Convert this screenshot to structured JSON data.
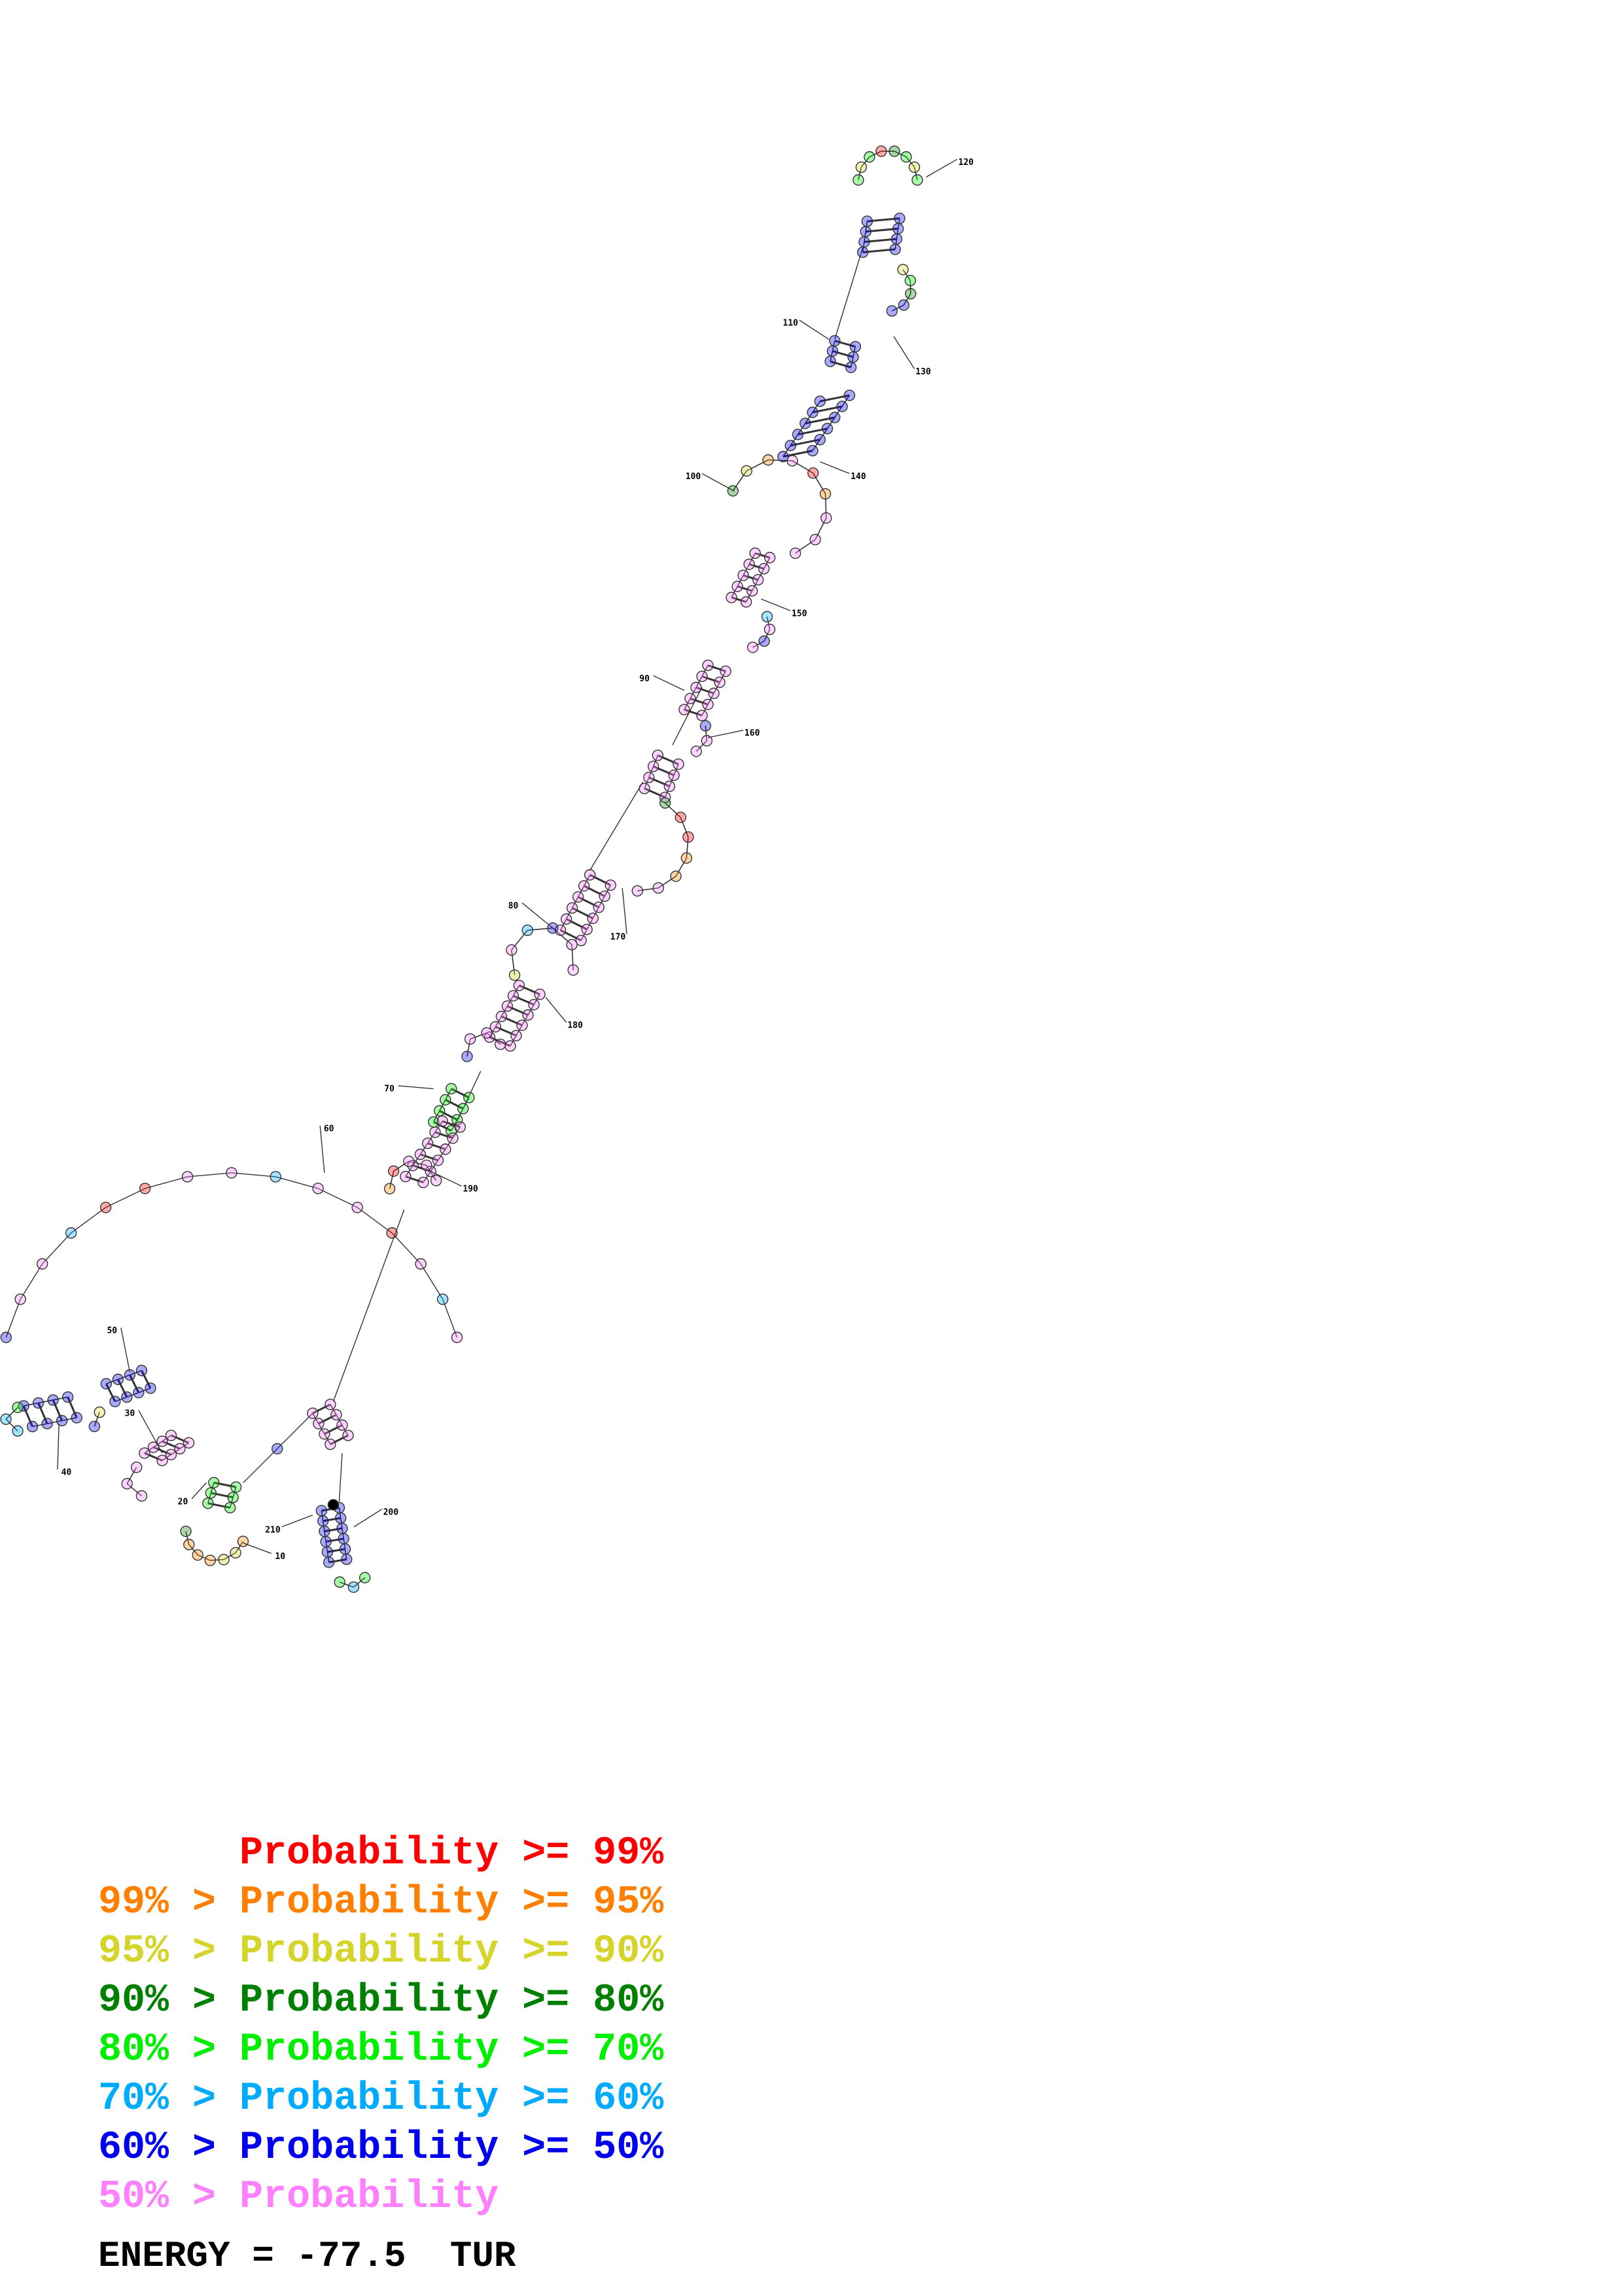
{
  "legend": [
    {
      "prefix": "",
      "label": "Probability >= 99%",
      "color": "#ff0000"
    },
    {
      "prefix": "99% > ",
      "label": "Probability >= 95%",
      "color": "#ff8000"
    },
    {
      "prefix": "95% > ",
      "label": "Probability >= 90%",
      "color": "#d4d42a"
    },
    {
      "prefix": "90% > ",
      "label": "Probability >= 80%",
      "color": "#008000"
    },
    {
      "prefix": "80% > ",
      "label": "Probability >= 70%",
      "color": "#00ee00"
    },
    {
      "prefix": "70% > ",
      "label": "Probability >= 60%",
      "color": "#00aaff"
    },
    {
      "prefix": "60% > ",
      "label": "Probability >= 50%",
      "color": "#0000ee"
    },
    {
      "prefix": "50% > ",
      "label": "Probability",
      "color": "#ff80ff"
    }
  ],
  "energy_text": "ENERGY = -77.5  TUR",
  "position_labels": [
    "10",
    "20",
    "30",
    "40",
    "50",
    "60",
    "70",
    "80",
    "90",
    "100",
    "110",
    "120",
    "130",
    "140",
    "150",
    "160",
    "170",
    "180",
    "190",
    "200",
    "210"
  ]
}
